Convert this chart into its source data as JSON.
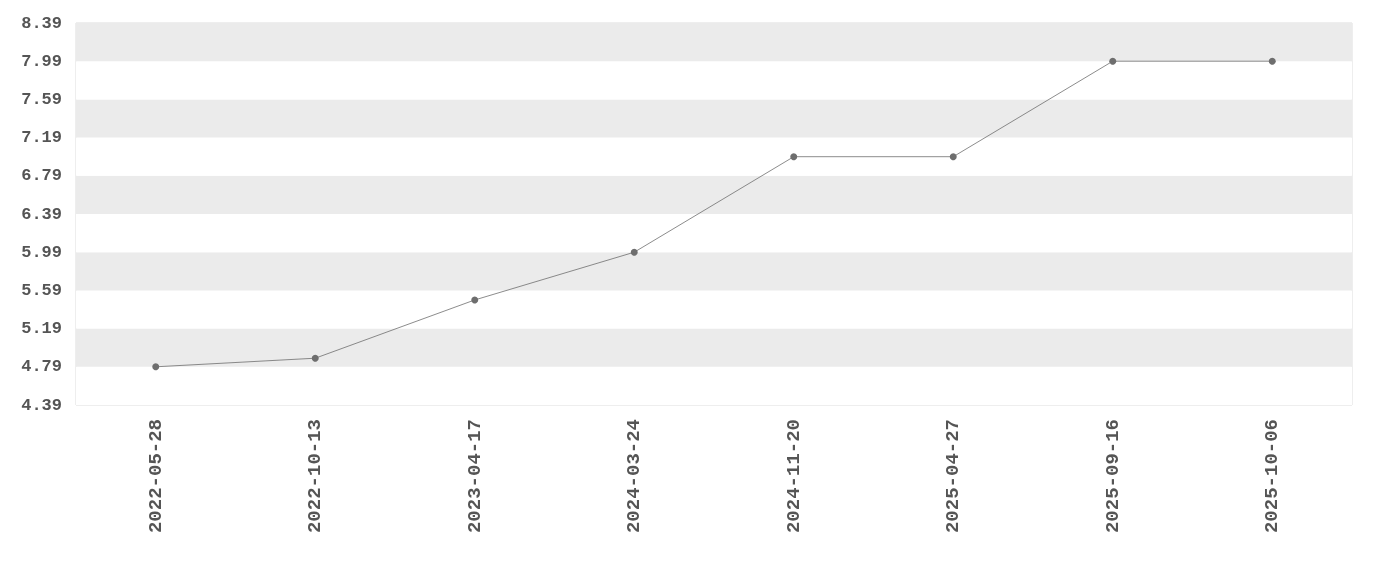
{
  "chart_data": {
    "type": "line",
    "categories": [
      "2022-05-28",
      "2022-10-13",
      "2023-04-17",
      "2024-03-24",
      "2024-11-20",
      "2025-04-27",
      "2025-09-16",
      "2025-10-06"
    ],
    "series": [
      {
        "color": "#6e6e6e",
        "values": [
          4.79,
          4.88,
          5.49,
          5.99,
          6.99,
          6.99,
          7.99,
          7.99
        ]
      }
    ],
    "ylim": [
      4.39,
      8.39
    ],
    "yticks": [
      4.39,
      4.79,
      5.19,
      5.59,
      5.99,
      6.39,
      6.79,
      7.19,
      7.59,
      7.99,
      8.39
    ],
    "marker": "circle",
    "line_style": "solid"
  }
}
